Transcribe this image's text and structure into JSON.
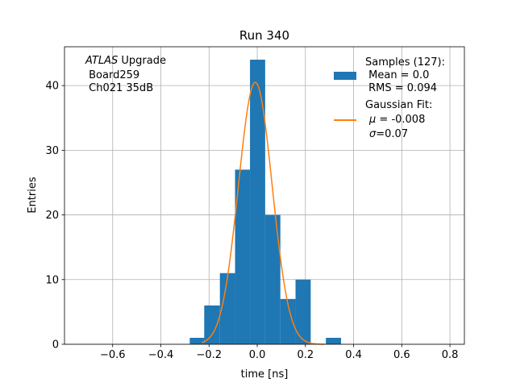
{
  "chart_data": {
    "type": "bar",
    "title": "Run 340",
    "xlabel": "time [ns]",
    "ylabel": "Entries",
    "xlim": [
      -0.8,
      0.86
    ],
    "ylim": [
      0,
      46
    ],
    "x_ticks": [
      -0.6,
      -0.4,
      -0.2,
      0.0,
      0.2,
      0.4,
      0.6,
      0.8
    ],
    "x_tick_labels": [
      "−0.6",
      "−0.4",
      "−0.2",
      "0.0",
      "0.2",
      "0.4",
      "0.6",
      "0.8"
    ],
    "y_ticks": [
      0,
      10,
      20,
      30,
      40
    ],
    "y_tick_labels": [
      "0",
      "10",
      "20",
      "30",
      "40"
    ],
    "grid": true,
    "legend_position": "top-right",
    "colors": {
      "histogram": "#1f77b4",
      "fit": "#ff7f0e"
    },
    "histogram": {
      "bin_edges": [
        -0.28,
        -0.22,
        -0.155,
        -0.092,
        -0.03,
        0.033,
        0.096,
        0.159,
        0.222,
        0.285,
        0.348
      ],
      "counts": [
        1,
        6,
        11,
        27,
        44,
        20,
        7,
        10,
        0,
        1
      ]
    },
    "gaussian_fit": {
      "mu": -0.008,
      "sigma": 0.07,
      "amplitude": 40.5,
      "x_range": [
        -0.23,
        0.28
      ]
    },
    "annotation": {
      "italic": "ATLAS",
      "rest": " Upgrade",
      "line2": " Board259",
      "line3": " Ch021 35dB"
    },
    "legend": {
      "samples": {
        "line1": "Samples (127):",
        "line2": " Mean = 0.0",
        "line3": " RMS = 0.094"
      },
      "fit": {
        "line1": "Gaussian Fit:",
        "mu_symbol": "μ",
        "mu_rest": " = -0.008",
        "sigma_symbol": "σ",
        "sigma_rest": "=0.07"
      }
    }
  }
}
